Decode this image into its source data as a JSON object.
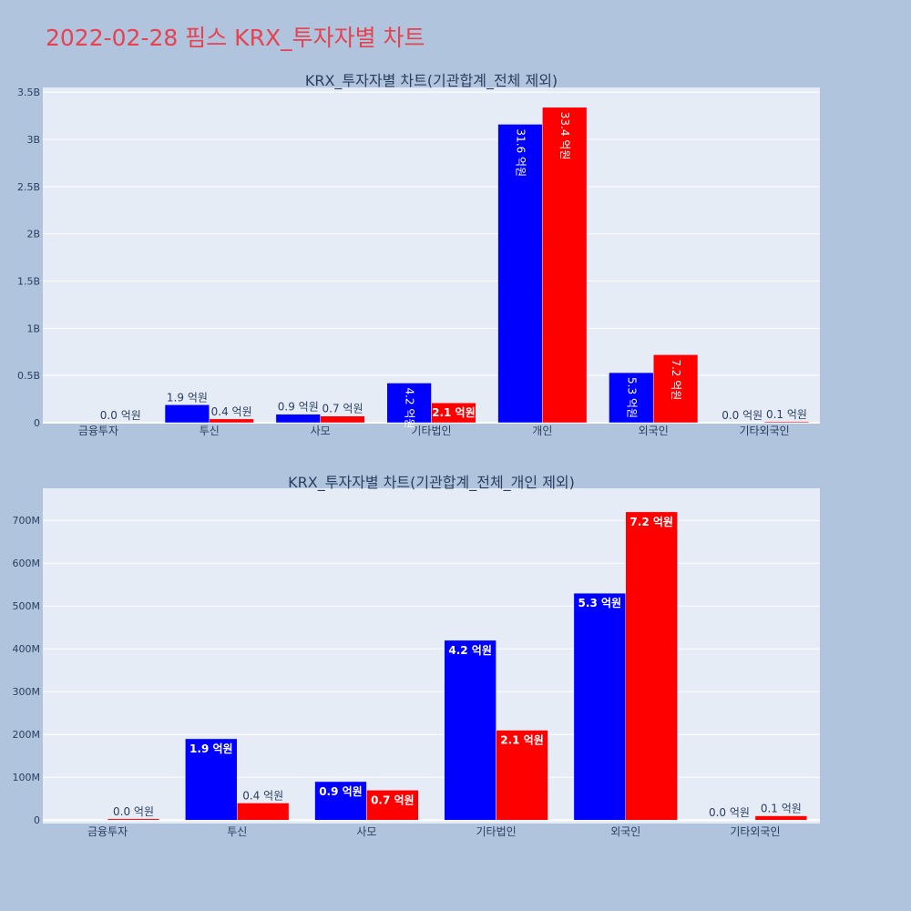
{
  "page": {
    "title": "2022-02-28 핌스 KRX_투자자별 차트"
  },
  "colors": {
    "background": "#b0c4de",
    "plot_bg": "#e5ecf6",
    "title": "#e8414f",
    "series_a": "#0000ff",
    "series_b": "#ff0000",
    "text": "#2a3f5f"
  },
  "chart_data": [
    {
      "type": "bar",
      "title": "KRX_투자자별 차트(기관합계_전체 제외)",
      "categories": [
        "금융투자",
        "투신",
        "사모",
        "기타법인",
        "개인",
        "외국인",
        "기타외국인"
      ],
      "series": [
        {
          "values": [
            0,
            190000000,
            90000000,
            420000000,
            3160000000,
            530000000,
            0
          ],
          "labels": [
            "",
            "1.9 억원",
            "0.9 억원",
            "4.2 억원",
            "31.6 억원",
            "5.3 억원",
            "0.0 억원"
          ]
        },
        {
          "values": [
            0,
            40000000,
            70000000,
            210000000,
            3340000000,
            720000000,
            10000000
          ],
          "labels": [
            "0.0 억원",
            "0.4 억원",
            "0.7 억원",
            "2.1 억원",
            "33.4 억원",
            "7.2 억원",
            "0.1 억원"
          ]
        }
      ],
      "ylim": [
        0,
        3550000000
      ],
      "yticks": [
        {
          "value": 0,
          "label": "0"
        },
        {
          "value": 500000000,
          "label": "0.5B"
        },
        {
          "value": 1000000000,
          "label": "1B"
        },
        {
          "value": 1500000000,
          "label": "1.5B"
        },
        {
          "value": 2000000000,
          "label": "2B"
        },
        {
          "value": 2500000000,
          "label": "2.5B"
        },
        {
          "value": 3000000000,
          "label": "3B"
        },
        {
          "value": 3500000000,
          "label": "3.5B"
        }
      ],
      "grid": true,
      "legend": "none"
    },
    {
      "type": "bar",
      "title": "KRX_투자자별 차트(기관합계_전체_개인 제외)",
      "categories": [
        "금융투자",
        "투신",
        "사모",
        "기타법인",
        "외국인",
        "기타외국인"
      ],
      "series": [
        {
          "values": [
            0,
            190000000,
            90000000,
            420000000,
            530000000,
            0
          ],
          "labels": [
            "",
            "1.9 억원",
            "0.9 억원",
            "4.2 억원",
            "5.3 억원",
            "0.0 억원"
          ]
        },
        {
          "values": [
            3000000,
            40000000,
            70000000,
            210000000,
            720000000,
            10000000
          ],
          "labels": [
            "0.0 억원",
            "0.4 억원",
            "0.7 억원",
            "2.1 억원",
            "7.2 억원",
            "0.1 억원"
          ]
        }
      ],
      "ylim": [
        -8000000,
        775000000
      ],
      "yticks": [
        {
          "value": 0,
          "label": "0"
        },
        {
          "value": 100000000,
          "label": "100M"
        },
        {
          "value": 200000000,
          "label": "200M"
        },
        {
          "value": 300000000,
          "label": "300M"
        },
        {
          "value": 400000000,
          "label": "400M"
        },
        {
          "value": 500000000,
          "label": "500M"
        },
        {
          "value": 600000000,
          "label": "600M"
        },
        {
          "value": 700000000,
          "label": "700M"
        }
      ],
      "grid": true,
      "legend": "none"
    }
  ]
}
